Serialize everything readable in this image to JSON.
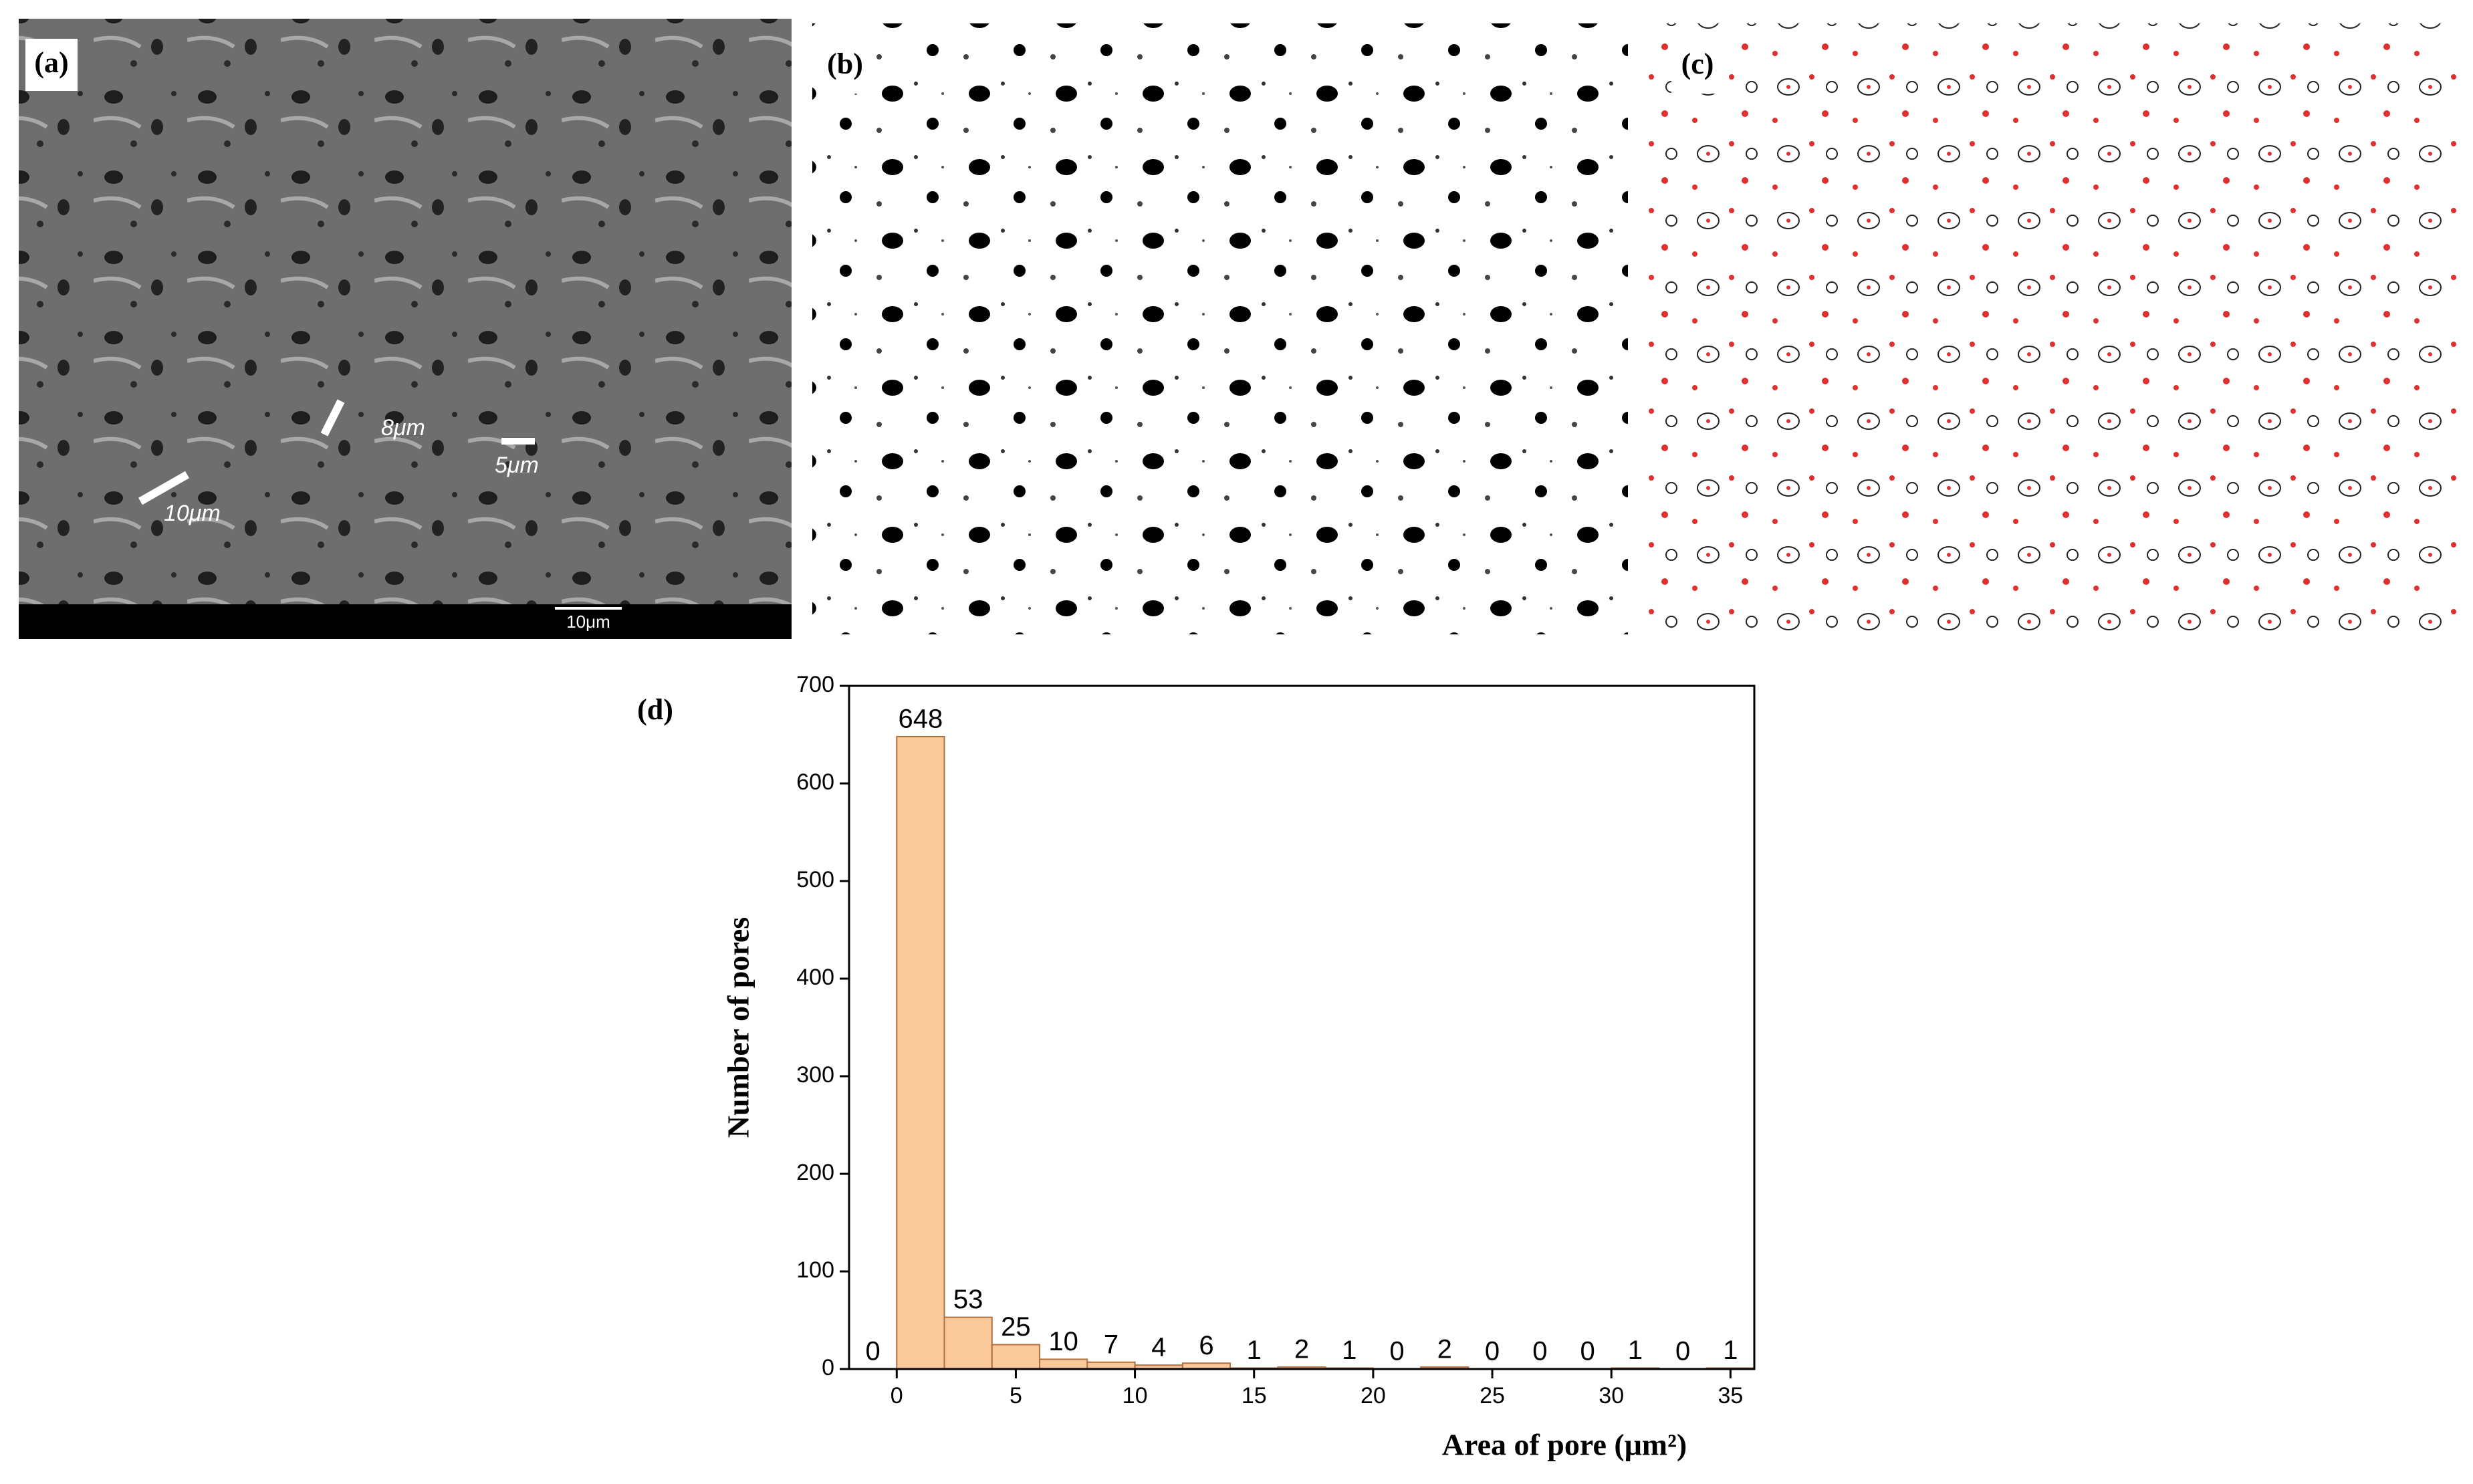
{
  "panels": [
    {
      "label": "(a)",
      "annotations": [
        "8μm",
        "5μm",
        "10μm"
      ],
      "scale_bar": "10μm"
    },
    {
      "label": "(b)"
    },
    {
      "label": "(c)"
    }
  ],
  "chart_data": {
    "type": "histogram",
    "label": "(d)",
    "x_label": "Area of pore (μm²)",
    "y_label": "Number of pores",
    "bins": [
      -2,
      0,
      2,
      4,
      6,
      8,
      10,
      12,
      14,
      16,
      18,
      20,
      22,
      24,
      26,
      28,
      30,
      32,
      34,
      36
    ],
    "values": [
      0,
      648,
      53,
      25,
      10,
      7,
      4,
      6,
      1,
      2,
      1,
      0,
      2,
      0,
      0,
      0,
      1,
      0,
      1
    ],
    "color": "#f9c89b",
    "edge_color": "#b07040",
    "xlim": [
      -2,
      36
    ],
    "xticks": [
      0,
      5,
      10,
      15,
      20,
      25,
      30,
      35
    ],
    "ylim": [
      0,
      700
    ],
    "yticks": [
      0,
      100,
      200,
      300,
      400,
      500,
      600,
      700
    ]
  }
}
